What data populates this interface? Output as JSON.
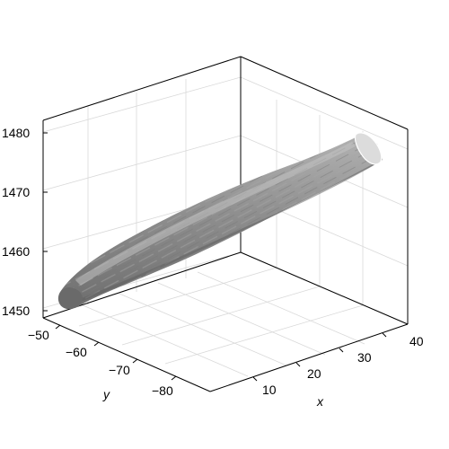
{
  "chart_data": {
    "type": "surface3d",
    "title": "",
    "xlabel": "x",
    "ylabel": "y",
    "zlabel": "",
    "x_ticks": [
      10,
      20,
      30,
      40
    ],
    "y_ticks": [
      -50,
      -60,
      -70,
      -80
    ],
    "z_ticks": [
      1450,
      1460,
      1470,
      1480
    ],
    "xlim": [
      0,
      40
    ],
    "ylim": [
      -87,
      -47
    ],
    "zlim": [
      1448,
      1482
    ],
    "grid": true,
    "shape": {
      "description_kind": "elongated tube surface",
      "start": {
        "x": 3,
        "y": -48,
        "z": 1452
      },
      "end": {
        "x": 40,
        "y": -84,
        "z": 1480
      },
      "max_radius_z": 4.2,
      "end_cap_shade": "#d8d8d8",
      "body_shade": "#8c8c8c"
    }
  }
}
